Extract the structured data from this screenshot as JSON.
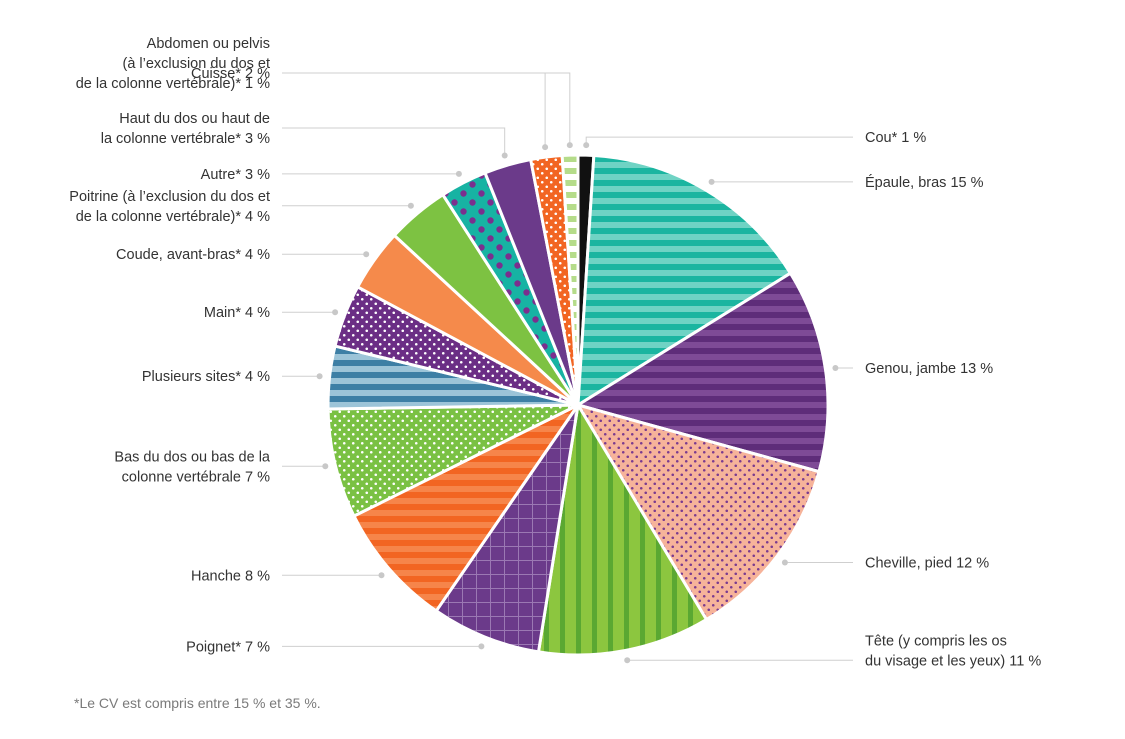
{
  "chart_data": {
    "type": "pie",
    "slices": [
      {
        "label": [
          "Cou*  1 %"
        ],
        "value": 1,
        "color": "#111111",
        "pattern": "solid"
      },
      {
        "label": [
          "Épaule, bras  15 %"
        ],
        "value": 15,
        "color": "#1bb5a0",
        "color2": "#6fd3c4",
        "pattern": "hstripes"
      },
      {
        "label": [
          "Genou, jambe  13 %"
        ],
        "value": 13,
        "color": "#5e2d79",
        "color2": "#7e4b96",
        "pattern": "hstripes"
      },
      {
        "label": [
          "Cheville, pied  12 %"
        ],
        "value": 12,
        "color": "#f6b39a",
        "color2": "#7b3b8f",
        "pattern": "dots"
      },
      {
        "label": [
          "Tête (y compris les os",
          "du visage et les yeux)  11 %"
        ],
        "value": 11,
        "color": "#8cc63f",
        "color2": "#5aa832",
        "pattern": "vstripes"
      },
      {
        "label": [
          "Poignet*  7 %"
        ],
        "value": 7,
        "color": "#6b3a8a",
        "color2": "#9b78b3",
        "pattern": "grid"
      },
      {
        "label": [
          "Hanche  8 %"
        ],
        "value": 8,
        "color": "#f26522",
        "color2": "#f6854a",
        "pattern": "hstripes"
      },
      {
        "label": [
          "Bas du dos ou bas de la",
          "colonne vertébrale  7 %"
        ],
        "value": 7,
        "color": "#7ac143",
        "color2": "#ffffff",
        "pattern": "dots"
      },
      {
        "label": [
          "Plusieurs sites*  4 %"
        ],
        "value": 4,
        "color": "#3d7fa5",
        "color2": "#9cc4d8",
        "pattern": "hstripes"
      },
      {
        "label": [
          "Main*  4 %"
        ],
        "value": 4,
        "color": "#6b2e85",
        "color2": "#ffffff",
        "pattern": "dots"
      },
      {
        "label": [
          "Coude, avant-bras*  4 %"
        ],
        "value": 4,
        "color": "#f58a4b",
        "pattern": "solid"
      },
      {
        "label": [
          "Poitrine (à l’exclusion du dos et",
          "de la colonne vertébrale)*  4 %"
        ],
        "value": 4,
        "color": "#7dc242",
        "pattern": "solid"
      },
      {
        "label": [
          "Autre*  3 %"
        ],
        "value": 3,
        "color": "#17b3a3",
        "color2": "#7b2f8e",
        "pattern": "bigdots"
      },
      {
        "label": [
          "Haut du dos ou haut de",
          "la colonne vertébrale*  3 %"
        ],
        "value": 3,
        "color": "#6b3a8a",
        "pattern": "solid"
      },
      {
        "label": [
          "Cuisse*  2 %"
        ],
        "value": 2,
        "color": "#f26522",
        "color2": "#ffffff",
        "pattern": "dots"
      },
      {
        "label": [
          "Abdomen ou pelvis",
          "(à l’exclusion du dos et",
          "de la colonne vertébrale)*  1 %"
        ],
        "value": 1,
        "color": "#b5dc8a",
        "color2": "#ffffff",
        "pattern": "hstripes"
      }
    ]
  },
  "footnote": "*Le CV est compris entre 15 % et 35 %."
}
